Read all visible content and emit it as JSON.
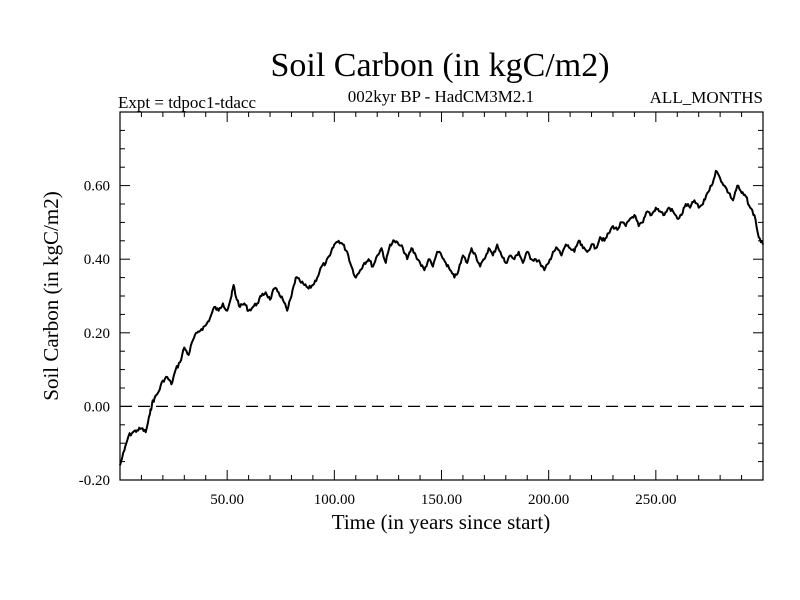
{
  "chart_data": {
    "type": "line",
    "title": "Soil Carbon (in kgC/m2)",
    "subtitle_left": "Expt = tdpoc1-tdacc",
    "subtitle_center": "002kyr BP - HadCM3M2.1",
    "subtitle_right": "ALL_MONTHS",
    "xlabel": "Time (in years since start)",
    "ylabel": "Soil Carbon (in kgC/m2)",
    "xlim": [
      0,
      300
    ],
    "ylim": [
      -0.2,
      0.8
    ],
    "xticks": [
      50,
      100,
      150,
      200,
      250
    ],
    "xtick_labels": [
      "50.00",
      "100.00",
      "150.00",
      "200.00",
      "250.00"
    ],
    "yticks": [
      -0.2,
      0.0,
      0.2,
      0.4,
      0.6
    ],
    "ytick_labels": [
      "-0.20",
      "0.00",
      "0.20",
      "0.40",
      "0.60"
    ],
    "zero_line": 0.0,
    "series": [
      {
        "name": "Soil Carbon",
        "color": "#000000",
        "x": [
          0,
          2,
          4,
          6,
          8,
          10,
          12,
          14,
          15,
          16,
          18,
          20,
          22,
          24,
          26,
          28,
          30,
          32,
          34,
          36,
          38,
          40,
          42,
          44,
          46,
          48,
          50,
          52,
          53,
          54,
          56,
          58,
          60,
          62,
          64,
          66,
          68,
          70,
          72,
          74,
          76,
          78,
          80,
          82,
          84,
          86,
          88,
          90,
          92,
          94,
          96,
          98,
          100,
          102,
          104,
          106,
          108,
          110,
          112,
          114,
          116,
          118,
          120,
          122,
          124,
          126,
          128,
          130,
          132,
          134,
          136,
          138,
          140,
          142,
          144,
          146,
          148,
          150,
          152,
          154,
          156,
          158,
          160,
          162,
          164,
          166,
          168,
          170,
          172,
          174,
          176,
          178,
          180,
          182,
          184,
          186,
          188,
          190,
          192,
          194,
          196,
          198,
          200,
          202,
          204,
          206,
          208,
          210,
          212,
          214,
          216,
          218,
          220,
          222,
          224,
          226,
          228,
          230,
          232,
          234,
          236,
          238,
          240,
          242,
          244,
          246,
          248,
          250,
          252,
          254,
          256,
          258,
          260,
          262,
          264,
          266,
          268,
          270,
          272,
          274,
          276,
          278,
          280,
          282,
          284,
          286,
          288,
          290,
          292,
          294,
          296,
          298,
          300
        ],
        "y": [
          -0.16,
          -0.12,
          -0.08,
          -0.07,
          -0.065,
          -0.06,
          -0.07,
          -0.02,
          0.01,
          0.02,
          0.04,
          0.07,
          0.08,
          0.06,
          0.1,
          0.12,
          0.16,
          0.14,
          0.18,
          0.2,
          0.21,
          0.22,
          0.24,
          0.27,
          0.26,
          0.28,
          0.26,
          0.3,
          0.33,
          0.3,
          0.27,
          0.28,
          0.26,
          0.27,
          0.28,
          0.3,
          0.31,
          0.29,
          0.32,
          0.31,
          0.29,
          0.26,
          0.3,
          0.35,
          0.34,
          0.33,
          0.32,
          0.33,
          0.35,
          0.38,
          0.39,
          0.41,
          0.44,
          0.45,
          0.44,
          0.42,
          0.38,
          0.35,
          0.37,
          0.39,
          0.4,
          0.38,
          0.41,
          0.43,
          0.39,
          0.44,
          0.45,
          0.44,
          0.43,
          0.4,
          0.43,
          0.41,
          0.39,
          0.37,
          0.4,
          0.38,
          0.42,
          0.41,
          0.39,
          0.37,
          0.35,
          0.37,
          0.41,
          0.39,
          0.43,
          0.41,
          0.38,
          0.4,
          0.43,
          0.41,
          0.44,
          0.41,
          0.39,
          0.41,
          0.4,
          0.42,
          0.39,
          0.42,
          0.4,
          0.4,
          0.39,
          0.37,
          0.39,
          0.42,
          0.43,
          0.41,
          0.44,
          0.43,
          0.42,
          0.45,
          0.43,
          0.42,
          0.44,
          0.43,
          0.46,
          0.45,
          0.47,
          0.49,
          0.48,
          0.5,
          0.49,
          0.51,
          0.52,
          0.49,
          0.5,
          0.53,
          0.52,
          0.54,
          0.53,
          0.52,
          0.54,
          0.53,
          0.51,
          0.52,
          0.55,
          0.54,
          0.56,
          0.54,
          0.55,
          0.58,
          0.6,
          0.64,
          0.62,
          0.6,
          0.58,
          0.56,
          0.6,
          0.58,
          0.57,
          0.54,
          0.52,
          0.46,
          0.44
        ]
      }
    ]
  }
}
